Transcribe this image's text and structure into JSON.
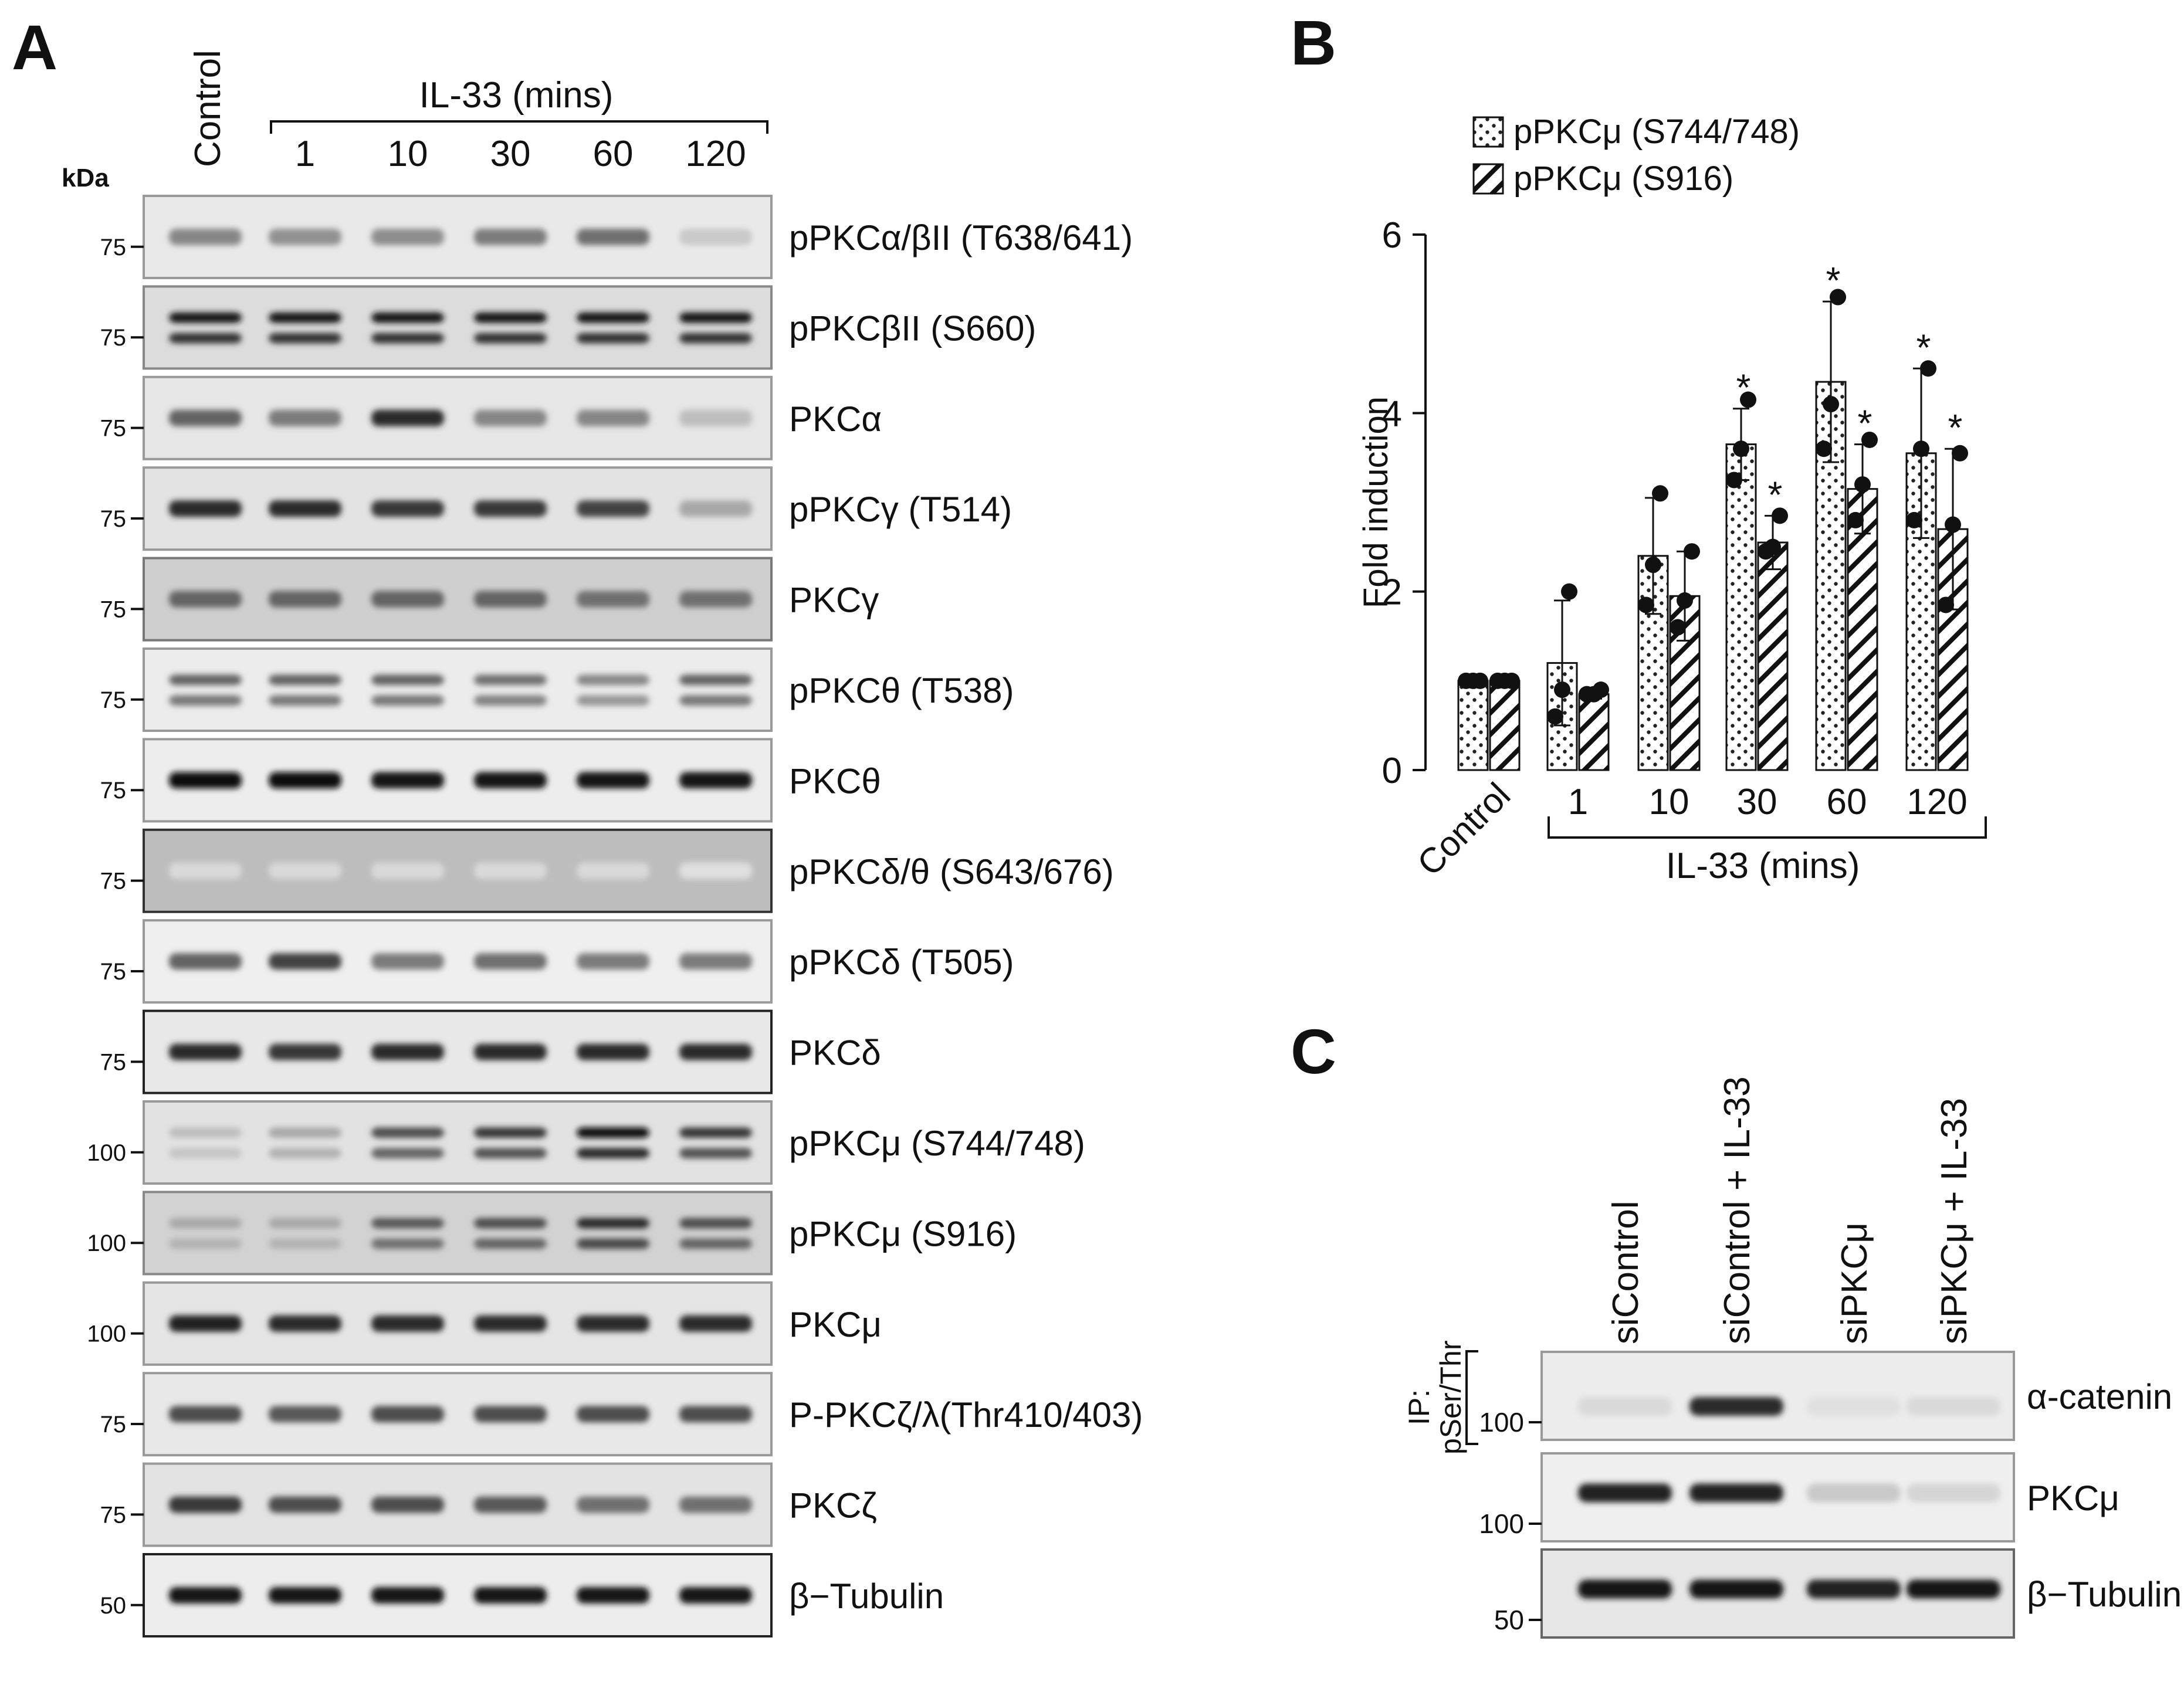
{
  "panelA": {
    "letter": "A",
    "control_label": "Control",
    "treatment_label": "IL-33 (mins)",
    "timepoints": [
      "1",
      "10",
      "30",
      "60",
      "120"
    ],
    "kda_label": "kDa",
    "blots": [
      {
        "label": "pPKCα/βII (T638/641)",
        "marker": "75",
        "bands": 1,
        "intensity": [
          0.45,
          0.4,
          0.42,
          0.5,
          0.55,
          0.15
        ],
        "bg": "#e9e9e9",
        "border": "#999"
      },
      {
        "label": "pPKCβII (S660)",
        "marker": "75",
        "bands": 2,
        "intensity": [
          0.95,
          0.95,
          0.95,
          0.95,
          0.95,
          0.95
        ],
        "bg": "#dcdcdc",
        "border": "#888"
      },
      {
        "label": "PKCα",
        "marker": "75",
        "bands": 1,
        "intensity": [
          0.6,
          0.5,
          0.85,
          0.45,
          0.45,
          0.2
        ],
        "bg": "#e6e6e6",
        "border": "#999"
      },
      {
        "label": "pPKCγ (T514)",
        "marker": "75",
        "bands": 1,
        "intensity": [
          0.85,
          0.85,
          0.8,
          0.8,
          0.75,
          0.3
        ],
        "bg": "#e3e3e3",
        "border": "#999"
      },
      {
        "label": "PKCγ",
        "marker": "75",
        "bands": 1,
        "intensity": [
          0.6,
          0.6,
          0.6,
          0.6,
          0.55,
          0.55
        ],
        "bg": "#cfcfcf",
        "border": "#777"
      },
      {
        "label": "pPKCθ (T538)",
        "marker": "75",
        "bands": 2,
        "intensity": [
          0.6,
          0.6,
          0.6,
          0.55,
          0.45,
          0.6
        ],
        "bg": "#ececec",
        "border": "#999"
      },
      {
        "label": "PKCθ",
        "marker": "75",
        "bands": 1,
        "intensity": [
          1.0,
          1.0,
          0.95,
          0.95,
          0.95,
          0.95
        ],
        "bg": "#ededed",
        "border": "#999"
      },
      {
        "label": "pPKCδ/θ (S643/676)",
        "marker": "75",
        "bands": 1,
        "intensity": [
          0.08,
          0.08,
          0.08,
          0.08,
          0.08,
          0.05
        ],
        "bg": "#bdbdbd",
        "border": "#333"
      },
      {
        "label": "pPKCδ (T505)",
        "marker": "75",
        "bands": 1,
        "intensity": [
          0.6,
          0.75,
          0.5,
          0.55,
          0.5,
          0.5
        ],
        "bg": "#efefef",
        "border": "#999"
      },
      {
        "label": "PKCδ",
        "marker": "75",
        "bands": 1,
        "intensity": [
          0.85,
          0.8,
          0.85,
          0.85,
          0.85,
          0.85
        ],
        "bg": "#e8e8e8",
        "border": "#222"
      },
      {
        "label": "pPKCμ (S744/748)",
        "marker": "100",
        "bands": 2,
        "intensity": [
          0.2,
          0.3,
          0.7,
          0.8,
          1.0,
          0.8
        ],
        "bg": "#e2e2e2",
        "border": "#999"
      },
      {
        "label": "pPKCμ (S916)",
        "marker": "100",
        "bands": 2,
        "intensity": [
          0.3,
          0.3,
          0.65,
          0.7,
          0.85,
          0.7
        ],
        "bg": "#d2d2d2",
        "border": "#888"
      },
      {
        "label": "PKCμ",
        "marker": "100",
        "bands": 1,
        "intensity": [
          0.9,
          0.85,
          0.85,
          0.85,
          0.85,
          0.85
        ],
        "bg": "#e5e5e5",
        "border": "#999"
      },
      {
        "label": "P-PKCζ/λ(Thr410/403)",
        "marker": "75",
        "bands": 1,
        "intensity": [
          0.7,
          0.65,
          0.7,
          0.7,
          0.7,
          0.7
        ],
        "bg": "#e8e8e8",
        "border": "#999"
      },
      {
        "label": "PKCζ",
        "marker": "75",
        "bands": 1,
        "intensity": [
          0.8,
          0.7,
          0.7,
          0.65,
          0.55,
          0.55
        ],
        "bg": "#e3e3e3",
        "border": "#999"
      },
      {
        "label": "β−Tubulin",
        "marker": "50",
        "bands": 1,
        "intensity": [
          0.95,
          0.95,
          0.95,
          0.95,
          0.95,
          0.95
        ],
        "bg": "#ededed",
        "border": "#222"
      }
    ]
  },
  "panelB": {
    "letter": "B",
    "chart_data": {
      "type": "bar",
      "ylabel": "Fold induction",
      "ylim": [
        0,
        6
      ],
      "yticks": [
        "0",
        "2",
        "4",
        "6"
      ],
      "categories": [
        "Control",
        "1",
        "10",
        "30",
        "60",
        "120"
      ],
      "group_label": "IL-33 (mins)",
      "legend_position": "top-left",
      "series": [
        {
          "name": "pPKCμ (S744/748)",
          "pattern": "dots",
          "values": [
            1.0,
            1.2,
            2.4,
            3.65,
            4.35,
            3.55
          ],
          "errors": [
            0.02,
            0.7,
            0.65,
            0.4,
            0.9,
            0.95
          ],
          "points": [
            [
              1.0,
              1.0,
              1.0
            ],
            [
              0.6,
              0.9,
              2.0
            ],
            [
              1.85,
              2.3,
              3.1
            ],
            [
              3.25,
              3.6,
              4.15
            ],
            [
              3.6,
              4.1,
              5.3
            ],
            [
              2.8,
              3.6,
              4.5
            ]
          ],
          "significant": [
            false,
            false,
            false,
            true,
            true,
            true
          ]
        },
        {
          "name": "pPKCμ (S916)",
          "pattern": "hatch",
          "values": [
            1.0,
            0.85,
            1.95,
            2.55,
            3.15,
            2.7
          ],
          "errors": [
            0.02,
            0.05,
            0.5,
            0.3,
            0.5,
            0.9
          ],
          "points": [
            [
              1.0,
              1.0,
              1.0
            ],
            [
              0.85,
              0.85,
              0.9
            ],
            [
              1.6,
              1.9,
              2.45
            ],
            [
              2.45,
              2.5,
              2.85
            ],
            [
              2.8,
              3.2,
              3.7
            ],
            [
              1.85,
              2.75,
              3.55
            ]
          ],
          "significant": [
            false,
            false,
            false,
            true,
            true,
            true
          ]
        }
      ]
    },
    "star": "*"
  },
  "panelC": {
    "letter": "C",
    "lanes": [
      "siControl",
      "siControl + IL-33",
      "siPKCμ",
      "siPKCμ + IL-33"
    ],
    "ip_label": "IP:",
    "ip_target": "pSer/Thr",
    "blots": [
      {
        "label": "α-catenin",
        "marker": "100",
        "intensity": [
          0.08,
          0.85,
          0.05,
          0.08
        ],
        "bg": "#ececec",
        "border": "#999"
      },
      {
        "label": "PKCμ",
        "marker": "100",
        "intensity": [
          0.9,
          0.9,
          0.15,
          0.1
        ],
        "bg": "#efefef",
        "border": "#999"
      },
      {
        "label": "β−Tubulin",
        "marker": "50",
        "intensity": [
          0.95,
          0.95,
          0.9,
          0.95
        ],
        "bg": "#e6e6e6",
        "border": "#666"
      }
    ]
  }
}
